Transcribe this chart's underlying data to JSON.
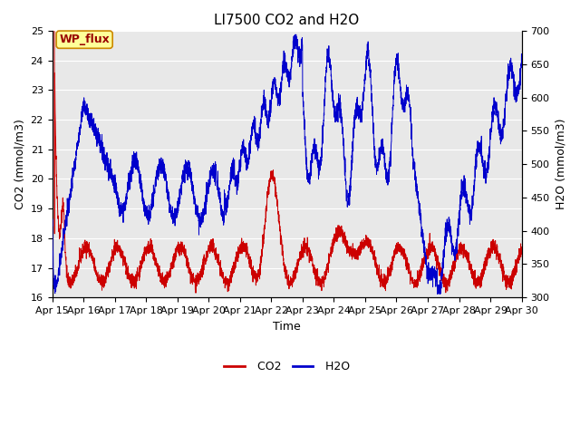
{
  "title": "LI7500 CO2 and H2O",
  "xlabel": "Time",
  "ylabel_left": "CO2 (mmol/m3)",
  "ylabel_right": "H2O (mmol/m3)",
  "ylim_left": [
    16.0,
    25.0
  ],
  "ylim_right": [
    300,
    700
  ],
  "yticks_left": [
    16.0,
    17.0,
    18.0,
    19.0,
    20.0,
    21.0,
    22.0,
    23.0,
    24.0,
    25.0
  ],
  "yticks_right": [
    300,
    350,
    400,
    450,
    500,
    550,
    600,
    650,
    700
  ],
  "xtick_labels": [
    "Apr 15",
    "Apr 16",
    "Apr 17",
    "Apr 18",
    "Apr 19",
    "Apr 20",
    "Apr 21",
    "Apr 22",
    "Apr 23",
    "Apr 24",
    "Apr 25",
    "Apr 26",
    "Apr 27",
    "Apr 28",
    "Apr 29",
    "Apr 30"
  ],
  "co2_color": "#cc0000",
  "h2o_color": "#0000cc",
  "background_color": "#ffffff",
  "plot_bg_color": "#e8e8e8",
  "grid_color": "#ffffff",
  "annotation_text": "WP_flux",
  "annotation_bg": "#ffff99",
  "annotation_border": "#cc8800",
  "title_fontsize": 11,
  "axis_label_fontsize": 9,
  "tick_fontsize": 8,
  "legend_fontsize": 9
}
